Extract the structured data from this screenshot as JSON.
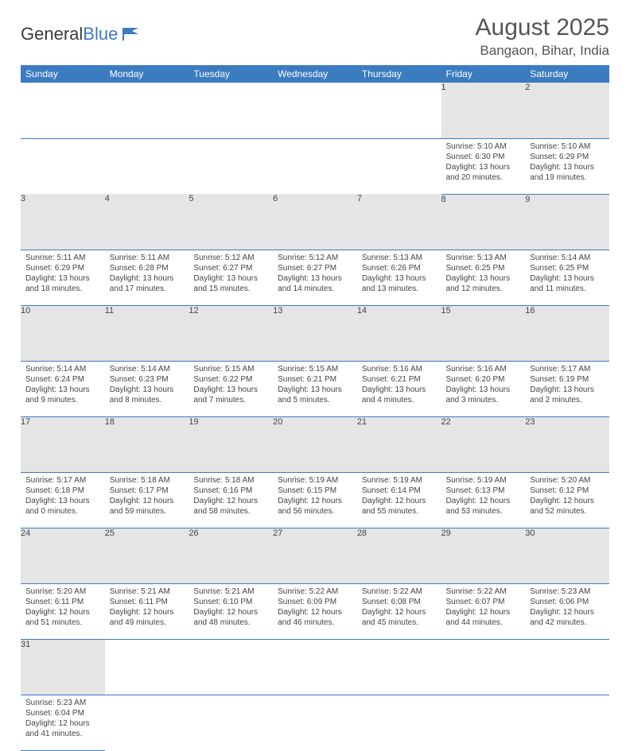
{
  "logo": {
    "text1": "General",
    "text2": "Blue"
  },
  "title": "August 2025",
  "location": "Bangaon, Bihar, India",
  "colors": {
    "accent": "#3b7bbf",
    "header_bg": "#3b7bbf",
    "daynum_bg": "#e5e5e5",
    "text": "#444444"
  },
  "weekdays": [
    "Sunday",
    "Monday",
    "Tuesday",
    "Wednesday",
    "Thursday",
    "Friday",
    "Saturday"
  ],
  "weeks": [
    [
      null,
      null,
      null,
      null,
      null,
      {
        "n": "1",
        "sr": "5:10 AM",
        "ss": "6:30 PM",
        "dl": "13 hours and 20 minutes."
      },
      {
        "n": "2",
        "sr": "5:10 AM",
        "ss": "6:29 PM",
        "dl": "13 hours and 19 minutes."
      }
    ],
    [
      {
        "n": "3",
        "sr": "5:11 AM",
        "ss": "6:29 PM",
        "dl": "13 hours and 18 minutes."
      },
      {
        "n": "4",
        "sr": "5:11 AM",
        "ss": "6:28 PM",
        "dl": "13 hours and 17 minutes."
      },
      {
        "n": "5",
        "sr": "5:12 AM",
        "ss": "6:27 PM",
        "dl": "13 hours and 15 minutes."
      },
      {
        "n": "6",
        "sr": "5:12 AM",
        "ss": "6:27 PM",
        "dl": "13 hours and 14 minutes."
      },
      {
        "n": "7",
        "sr": "5:13 AM",
        "ss": "6:26 PM",
        "dl": "13 hours and 13 minutes."
      },
      {
        "n": "8",
        "sr": "5:13 AM",
        "ss": "6:25 PM",
        "dl": "13 hours and 12 minutes."
      },
      {
        "n": "9",
        "sr": "5:14 AM",
        "ss": "6:25 PM",
        "dl": "13 hours and 11 minutes."
      }
    ],
    [
      {
        "n": "10",
        "sr": "5:14 AM",
        "ss": "6:24 PM",
        "dl": "13 hours and 9 minutes."
      },
      {
        "n": "11",
        "sr": "5:14 AM",
        "ss": "6:23 PM",
        "dl": "13 hours and 8 minutes."
      },
      {
        "n": "12",
        "sr": "5:15 AM",
        "ss": "6:22 PM",
        "dl": "13 hours and 7 minutes."
      },
      {
        "n": "13",
        "sr": "5:15 AM",
        "ss": "6:21 PM",
        "dl": "13 hours and 5 minutes."
      },
      {
        "n": "14",
        "sr": "5:16 AM",
        "ss": "6:21 PM",
        "dl": "13 hours and 4 minutes."
      },
      {
        "n": "15",
        "sr": "5:16 AM",
        "ss": "6:20 PM",
        "dl": "13 hours and 3 minutes."
      },
      {
        "n": "16",
        "sr": "5:17 AM",
        "ss": "6:19 PM",
        "dl": "13 hours and 2 minutes."
      }
    ],
    [
      {
        "n": "17",
        "sr": "5:17 AM",
        "ss": "6:18 PM",
        "dl": "13 hours and 0 minutes."
      },
      {
        "n": "18",
        "sr": "5:18 AM",
        "ss": "6:17 PM",
        "dl": "12 hours and 59 minutes."
      },
      {
        "n": "19",
        "sr": "5:18 AM",
        "ss": "6:16 PM",
        "dl": "12 hours and 58 minutes."
      },
      {
        "n": "20",
        "sr": "5:19 AM",
        "ss": "6:15 PM",
        "dl": "12 hours and 56 minutes."
      },
      {
        "n": "21",
        "sr": "5:19 AM",
        "ss": "6:14 PM",
        "dl": "12 hours and 55 minutes."
      },
      {
        "n": "22",
        "sr": "5:19 AM",
        "ss": "6:13 PM",
        "dl": "12 hours and 53 minutes."
      },
      {
        "n": "23",
        "sr": "5:20 AM",
        "ss": "6:12 PM",
        "dl": "12 hours and 52 minutes."
      }
    ],
    [
      {
        "n": "24",
        "sr": "5:20 AM",
        "ss": "6:11 PM",
        "dl": "12 hours and 51 minutes."
      },
      {
        "n": "25",
        "sr": "5:21 AM",
        "ss": "6:11 PM",
        "dl": "12 hours and 49 minutes."
      },
      {
        "n": "26",
        "sr": "5:21 AM",
        "ss": "6:10 PM",
        "dl": "12 hours and 48 minutes."
      },
      {
        "n": "27",
        "sr": "5:22 AM",
        "ss": "6:09 PM",
        "dl": "12 hours and 46 minutes."
      },
      {
        "n": "28",
        "sr": "5:22 AM",
        "ss": "6:08 PM",
        "dl": "12 hours and 45 minutes."
      },
      {
        "n": "29",
        "sr": "5:22 AM",
        "ss": "6:07 PM",
        "dl": "12 hours and 44 minutes."
      },
      {
        "n": "30",
        "sr": "5:23 AM",
        "ss": "6:06 PM",
        "dl": "12 hours and 42 minutes."
      }
    ],
    [
      {
        "n": "31",
        "sr": "5:23 AM",
        "ss": "6:04 PM",
        "dl": "12 hours and 41 minutes."
      },
      null,
      null,
      null,
      null,
      null,
      null
    ]
  ],
  "labels": {
    "sunrise": "Sunrise: ",
    "sunset": "Sunset: ",
    "daylight": "Daylight: "
  }
}
